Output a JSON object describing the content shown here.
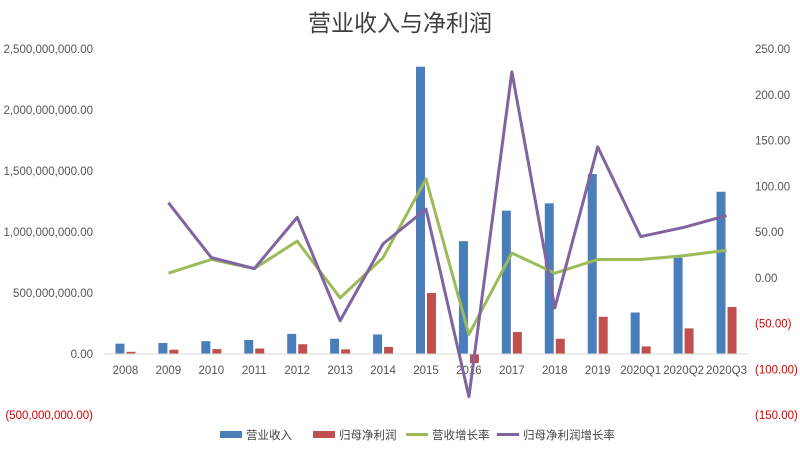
{
  "chart_data": {
    "type": "bar",
    "title": "营业收入与净利润",
    "categories": [
      "2008",
      "2009",
      "2010",
      "2011",
      "2012",
      "2013",
      "2014",
      "2015",
      "2016",
      "2017",
      "2018",
      "2019",
      "2020Q1",
      "2020Q2",
      "2020Q3"
    ],
    "series": [
      {
        "name": "营业收入",
        "kind": "bar",
        "axis": "left",
        "color": "#4a7ebb",
        "values": [
          85000000,
          90000000,
          105000000,
          115000000,
          165000000,
          125000000,
          160000000,
          2355000000,
          925000000,
          1175000000,
          1235000000,
          1475000000,
          340000000,
          790000000,
          1330000000
        ]
      },
      {
        "name": "归母净利润",
        "kind": "bar",
        "axis": "left",
        "color": "#c0504d",
        "values": [
          18000000,
          35000000,
          40000000,
          45000000,
          80000000,
          38000000,
          58000000,
          500000000,
          -75000000,
          180000000,
          125000000,
          305000000,
          62000000,
          210000000,
          385000000
        ]
      },
      {
        "name": "营收增长率",
        "kind": "line",
        "axis": "right",
        "color": "#9bbb59",
        "values": [
          null,
          5,
          20,
          10,
          40,
          -22,
          22,
          108,
          -62,
          27,
          5,
          20,
          20,
          24,
          30
        ]
      },
      {
        "name": "归母净利润增长率",
        "kind": "line",
        "axis": "right",
        "color": "#8064a2",
        "values": [
          null,
          82,
          22,
          10,
          66,
          -47,
          37,
          75,
          -130,
          225,
          -33,
          143,
          45,
          55,
          68
        ]
      }
    ],
    "left_axis": {
      "min": -500000000,
      "max": 2500000000,
      "step": 500000000,
      "ticks": [
        "(500,000,000.00)",
        "0.00",
        "500,000,000.00",
        "1,000,000,000.00",
        "1,500,000,000.00",
        "2,000,000,000.00",
        "2,500,000,000.00"
      ]
    },
    "right_axis": {
      "min": -150,
      "max": 250,
      "step": 50,
      "ticks": [
        "(150.00)",
        "(100.00)",
        "(50.00)",
        "0.00",
        "50.00",
        "100.00",
        "150.00",
        "200.00",
        "250.00"
      ]
    },
    "grid": false,
    "legend_position": "bottom"
  }
}
